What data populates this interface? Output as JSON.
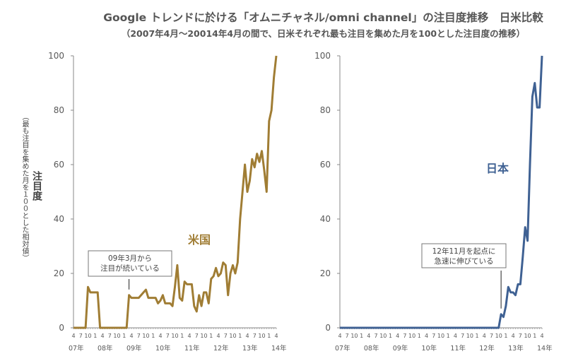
{
  "title": "Google トレンドに於ける「オムニチャネル/omni channel」の注目度推移　日米比較",
  "subtitle": "（2007年4月～20014年4月の間で、日米それぞれ最も注目を集めた月を100とした注目度の推移）",
  "chart_data": [
    {
      "type": "line",
      "name": "us",
      "series_label": "米国",
      "color": "#a07d34",
      "ylabel": "注目度",
      "ylabel_sub": "（最も注目を集めた月を１００とした相対値）",
      "ylim": [
        0,
        100
      ],
      "y_ticks": [
        "0",
        "20",
        "40",
        "60",
        "80",
        "100"
      ],
      "x_start": "2007-04",
      "x_end": "2014-04",
      "x_tick_labels": [
        "4",
        "7",
        "10",
        "1",
        "4",
        "7",
        "10",
        "1",
        "4",
        "7",
        "10",
        "1",
        "4",
        "7",
        "10",
        "1",
        "4",
        "7",
        "10",
        "1",
        "4",
        "7",
        "10",
        "1",
        "4",
        "7",
        "10",
        "1",
        "4"
      ],
      "year_labels": [
        "07年",
        "08年",
        "09年",
        "10年",
        "11年",
        "12年",
        "13年",
        "14年"
      ],
      "values": [
        0,
        0,
        0,
        0,
        0,
        0,
        15,
        13,
        13,
        13,
        13,
        0,
        0,
        0,
        0,
        0,
        0,
        0,
        0,
        0,
        0,
        0,
        0,
        12,
        11,
        11,
        11,
        11,
        12,
        13,
        14,
        11,
        11,
        11,
        11,
        9,
        10,
        12,
        9,
        9,
        9,
        8,
        15,
        23,
        11,
        10,
        17,
        16,
        16,
        16,
        8,
        6,
        12,
        8,
        13,
        13,
        9,
        18,
        19,
        22,
        19,
        20,
        24,
        23,
        12,
        20,
        23,
        20,
        24,
        40,
        50,
        60,
        50,
        54,
        62,
        59,
        64,
        61,
        65,
        58,
        50,
        76,
        80,
        92,
        100
      ],
      "annotation": {
        "line1": "09年3月から",
        "line2": "注目が続いている",
        "month_index": 23
      }
    },
    {
      "type": "line",
      "name": "japan",
      "series_label": "日本",
      "color": "#3f6193",
      "ylim": [
        0,
        100
      ],
      "y_ticks": [
        "0",
        "20",
        "40",
        "60",
        "80",
        "100"
      ],
      "x_start": "2007-04",
      "x_end": "2014-04",
      "x_tick_labels": [
        "4",
        "7",
        "10",
        "1",
        "4",
        "7",
        "10",
        "1",
        "4",
        "7",
        "10",
        "1",
        "4",
        "7",
        "10",
        "1",
        "4",
        "7",
        "10",
        "1",
        "4",
        "7",
        "10",
        "1",
        "4",
        "7",
        "10",
        "1",
        "4"
      ],
      "year_labels": [
        "07年",
        "08年",
        "09年",
        "10年",
        "11年",
        "12年",
        "13年",
        "14年"
      ],
      "values": [
        0,
        0,
        0,
        0,
        0,
        0,
        0,
        0,
        0,
        0,
        0,
        0,
        0,
        0,
        0,
        0,
        0,
        0,
        0,
        0,
        0,
        0,
        0,
        0,
        0,
        0,
        0,
        0,
        0,
        0,
        0,
        0,
        0,
        0,
        0,
        0,
        0,
        0,
        0,
        0,
        0,
        0,
        0,
        0,
        0,
        0,
        0,
        0,
        0,
        0,
        0,
        0,
        0,
        0,
        0,
        0,
        0,
        0,
        0,
        0,
        0,
        0,
        0,
        0,
        0,
        0,
        0,
        5,
        4,
        8,
        15,
        13,
        13,
        12,
        16,
        16,
        26,
        37,
        32,
        60,
        85,
        90,
        81,
        81,
        100
      ],
      "annotation": {
        "line1": "12年11月を起点に",
        "line2": "急速に伸びている",
        "month_index": 67
      }
    }
  ]
}
